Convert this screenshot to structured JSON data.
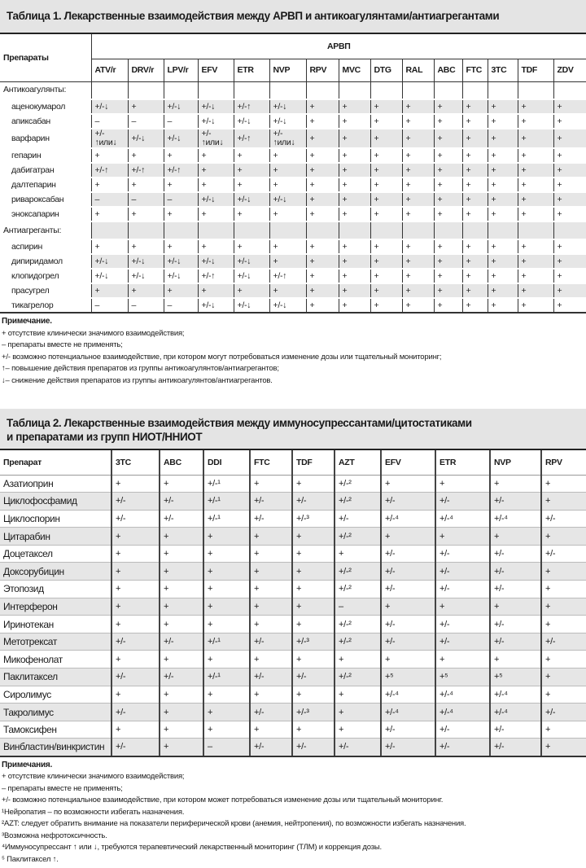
{
  "table1": {
    "title": "Таблица 1. Лекарственные взаимодействия между АРВП и антикоагулянтами/антиагрегантами",
    "col_header": "Препараты",
    "group_header": "АРВП",
    "columns": [
      "ATV/r",
      "DRV/r",
      "LPV/r",
      "EFV",
      "ETR",
      "NVP",
      "RPV",
      "MVC",
      "DTG",
      "RAL",
      "ABC",
      "FTC",
      "3TC",
      "TDF",
      "ZDV"
    ],
    "groups": [
      {
        "label": "Антикоагулянты:",
        "rows": [
          {
            "name": "аценокумарол",
            "values": [
              "+/-↓",
              "+",
              "+/-↓",
              "+/-↓",
              "+/-↑",
              "+/-↓",
              "+",
              "+",
              "+",
              "+",
              "+",
              "+",
              "+",
              "+",
              "+"
            ]
          },
          {
            "name": "апиксабан",
            "values": [
              "–",
              "–",
              "–",
              "+/-↓",
              "+/-↓",
              "+/-↓",
              "+",
              "+",
              "+",
              "+",
              "+",
              "+",
              "+",
              "+",
              "+"
            ]
          },
          {
            "name": "варфарин",
            "values": [
              "+/-\n↑или↓",
              "+/-↓",
              "+/-↓",
              "+/-\n↑или↓",
              "+/-↑",
              "+/-\n↑или↓",
              "+",
              "+",
              "+",
              "+",
              "+",
              "+",
              "+",
              "+",
              "+"
            ]
          },
          {
            "name": "гепарин",
            "values": [
              "+",
              "+",
              "+",
              "+",
              "+",
              "+",
              "+",
              "+",
              "+",
              "+",
              "+",
              "+",
              "+",
              "+",
              "+"
            ]
          },
          {
            "name": "дабигатран",
            "values": [
              "+/-↑",
              "+/-↑",
              "+/-↑",
              "+",
              "+",
              "+",
              "+",
              "+",
              "+",
              "+",
              "+",
              "+",
              "+",
              "+",
              "+"
            ]
          },
          {
            "name": "далтепарин",
            "values": [
              "+",
              "+",
              "+",
              "+",
              "+",
              "+",
              "+",
              "+",
              "+",
              "+",
              "+",
              "+",
              "+",
              "+",
              "+"
            ]
          },
          {
            "name": "ривароксабан",
            "values": [
              "–",
              "–",
              "–",
              "+/-↓",
              "+/-↓",
              "+/-↓",
              "+",
              "+",
              "+",
              "+",
              "+",
              "+",
              "+",
              "+",
              "+"
            ]
          },
          {
            "name": "эноксапарин",
            "values": [
              "+",
              "+",
              "+",
              "+",
              "+",
              "+",
              "+",
              "+",
              "+",
              "+",
              "+",
              "+",
              "+",
              "+",
              "+"
            ]
          }
        ]
      },
      {
        "label": "Антиагреганты:",
        "rows": [
          {
            "name": "аспирин",
            "values": [
              "+",
              "+",
              "+",
              "+",
              "+",
              "+",
              "+",
              "+",
              "+",
              "+",
              "+",
              "+",
              "+",
              "+",
              "+"
            ]
          },
          {
            "name": "дипиридамол",
            "values": [
              "+/-↓",
              "+/-↓",
              "+/-↓",
              "+/-↓",
              "+/-↓",
              "+",
              "+",
              "+",
              "+",
              "+",
              "+",
              "+",
              "+",
              "+",
              "+"
            ]
          },
          {
            "name": "клопидогрел",
            "values": [
              "+/-↓",
              "+/-↓",
              "+/-↓",
              "+/-↑",
              "+/-↓",
              "+/-↑",
              "+",
              "+",
              "+",
              "+",
              "+",
              "+",
              "+",
              "+",
              "+"
            ]
          },
          {
            "name": "прасугрел",
            "values": [
              "+",
              "+",
              "+",
              "+",
              "+",
              "+",
              "+",
              "+",
              "+",
              "+",
              "+",
              "+",
              "+",
              "+",
              "+"
            ]
          },
          {
            "name": "тикагрелор",
            "values": [
              "–",
              "–",
              "–",
              "+/-↓",
              "+/-↓",
              "+/-↓",
              "+",
              "+",
              "+",
              "+",
              "+",
              "+",
              "+",
              "+",
              "+"
            ]
          }
        ]
      }
    ],
    "notes_title": "Примечание.",
    "notes": [
      "+ отсутствие клинически значимого взаимодействия;",
      "– препараты вместе не применять;",
      "+/- возможно потенциальное взаимодействие, при котором могут потребоваться изменение дозы или тщательный мониторинг;",
      "↑– повышение действия препаратов из группы антикоагулянтов/антиагрегантов;",
      "↓– снижение действия препаратов из группы антикоагулянтов/антиагрегантов."
    ]
  },
  "table2": {
    "title_line1": "Таблица 2. Лекарственные взаимодействия между иммуносупрессантами/цитостатиками",
    "title_line2": "и препаратами из групп  НИОТ/ННИОТ",
    "col_header": "Препарат",
    "columns": [
      "3TC",
      "ABC",
      "DDI",
      "FTC",
      "TDF",
      "AZT",
      "EFV",
      "ETR",
      "NVP",
      "RPV"
    ],
    "rows": [
      {
        "name": "Азатиоприн",
        "values": [
          "+",
          "+",
          "+/-¹",
          "+",
          "+",
          "+/-²",
          "+",
          "+",
          "+",
          "+"
        ]
      },
      {
        "name": "Циклофосфамид",
        "values": [
          "+/-",
          "+/-",
          "+/-¹",
          "+/-",
          "+/-",
          "+/-²",
          "+/-",
          "+/-",
          "+/-",
          "+"
        ]
      },
      {
        "name": "Циклоспорин",
        "values": [
          "+/-",
          "+/-",
          "+/-¹",
          "+/-",
          "+/-³",
          "+/-",
          "+/-⁴",
          "+/-⁴",
          "+/-⁴",
          "+/-"
        ]
      },
      {
        "name": "Цитарабин",
        "values": [
          "+",
          "+",
          "+",
          "+",
          "+",
          "+/-²",
          "+",
          "+",
          "+",
          "+"
        ]
      },
      {
        "name": "Доцетаксел",
        "values": [
          "+",
          "+",
          "+",
          "+",
          "+",
          "+",
          "+/-",
          "+/-",
          "+/-",
          "+/-"
        ]
      },
      {
        "name": "Доксорубицин",
        "values": [
          "+",
          "+",
          "+",
          "+",
          "+",
          "+/-²",
          "+/-",
          "+/-",
          "+/-",
          "+"
        ]
      },
      {
        "name": "Этопозид",
        "values": [
          "+",
          "+",
          "+",
          "+",
          "+",
          "+/-²",
          "+/-",
          "+/-",
          "+/-",
          "+"
        ]
      },
      {
        "name": "Интерферон",
        "values": [
          "+",
          "+",
          "+",
          "+",
          "+",
          "–",
          "+",
          "+",
          "+",
          "+"
        ]
      },
      {
        "name": "Иринотекан",
        "values": [
          "+",
          "+",
          "+",
          "+",
          "+",
          "+/-²",
          "+/-",
          "+/-",
          "+/-",
          "+"
        ]
      },
      {
        "name": "Метотрексат",
        "values": [
          "+/-",
          "+/-",
          "+/-¹",
          "+/-",
          "+/-³",
          "+/-²",
          "+/-",
          "+/-",
          "+/-",
          "+/-"
        ]
      },
      {
        "name": "Микофенолат",
        "values": [
          "+",
          "+",
          "+",
          "+",
          "+",
          "+",
          "+",
          "+",
          "+",
          "+"
        ]
      },
      {
        "name": "Паклитаксел",
        "values": [
          "+/-",
          "+/-",
          "+/-¹",
          "+/-",
          "+/-",
          "+/-²",
          "+⁵",
          "+⁵",
          "+⁵",
          "+"
        ]
      },
      {
        "name": "Сиролимус",
        "values": [
          "+",
          "+",
          "+",
          "+",
          "+",
          "+",
          "+/-⁴",
          "+/-⁴",
          "+/-⁴",
          "+"
        ]
      },
      {
        "name": "Такролимус",
        "values": [
          "+/-",
          "+",
          "+",
          "+/-",
          "+/-³",
          "+",
          "+/-⁴",
          "+/-⁴",
          "+/-⁴",
          "+/-"
        ]
      },
      {
        "name": "Тамоксифен",
        "values": [
          "+",
          "+",
          "+",
          "+",
          "+",
          "+",
          "+/-",
          "+/-",
          "+/-",
          "+"
        ]
      },
      {
        "name": "Винбластин/винкристин",
        "values": [
          "+/-",
          "+",
          "–",
          "+/-",
          "+/-",
          "+/-",
          "+/-",
          "+/-",
          "+/-",
          "+"
        ]
      }
    ],
    "notes_title": "Примечания.",
    "notes": [
      "+ отсутствие клинически значимого взаимодействия;",
      "–  препараты вместе не применять;",
      "+/- возможно потенциальное взаимодействие, при котором может потребоваться изменение дозы или тщательный мониторинг.",
      "¹Нейропатия – по возможности избегать назначения.",
      "²AZT: следует обратить внимание на показатели периферической крови (анемия, нейтропения), по возможности избегать  назначения.",
      "³Возможна нефротоксичность.",
      "⁴Иммуносупрессант ↑ или ↓, требуются терапевтический лекарственный мониторинг (ТЛМ) и коррекция дозы.",
      "⁵ Паклитаксел ↑."
    ]
  }
}
